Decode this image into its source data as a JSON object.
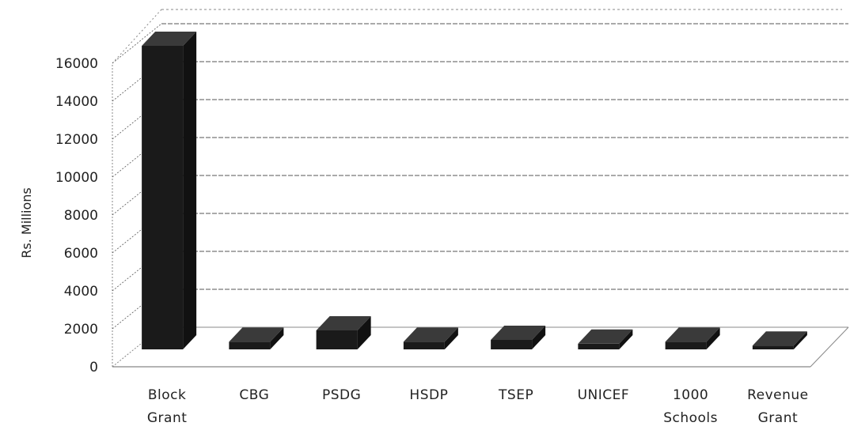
{
  "chart_data": {
    "type": "bar",
    "style": "3d-column",
    "ylabel": "Rs. Millions",
    "xlabel": "",
    "ylim": [
      0,
      16000
    ],
    "yticks": [
      0,
      2000,
      4000,
      6000,
      8000,
      10000,
      12000,
      14000,
      16000
    ],
    "categories": [
      "Block Grant",
      "CBG",
      "PSDG",
      "HSDP",
      "TSEP",
      "UNICEF",
      "1000 Schools",
      "Revenue Grant"
    ],
    "category_lines": [
      [
        "Block",
        "Grant"
      ],
      [
        "CBG"
      ],
      [
        "PSDG"
      ],
      [
        "HSDP"
      ],
      [
        "TSEP"
      ],
      [
        "UNICEF"
      ],
      [
        "1000",
        "Schools"
      ],
      [
        "Revenue",
        "Grant"
      ]
    ],
    "values": [
      16000,
      400,
      1000,
      400,
      500,
      300,
      400,
      200
    ],
    "grid": true,
    "colors": {
      "bar": "#1a1a1a",
      "bar_top": "#3a3a3a",
      "grid": "#555555",
      "wall": "#888888"
    }
  }
}
